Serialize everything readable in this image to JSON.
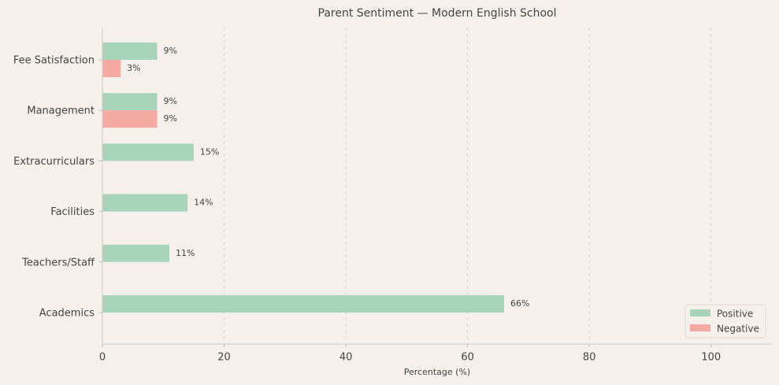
{
  "chart_data": {
    "type": "barh",
    "title": "Parent Sentiment — Modern English School",
    "xlabel": "Percentage (%)",
    "categories": [
      "Fee Satisfaction",
      "Management",
      "Extracurriculars",
      "Facilities",
      "Teachers/Staff",
      "Academics"
    ],
    "series": [
      {
        "name": "Positive",
        "color": "#a8d5ba",
        "values": [
          9,
          9,
          15,
          14,
          11,
          66
        ],
        "value_labels": [
          "9%",
          "9%",
          "15%",
          "14%",
          "11%",
          "66%"
        ]
      },
      {
        "name": "Negative",
        "color": "#f4a9a3",
        "values": [
          3,
          9,
          null,
          null,
          null,
          null
        ],
        "value_labels": [
          "3%",
          "9%",
          null,
          null,
          null,
          null
        ]
      }
    ],
    "xlim": [
      0,
      110
    ],
    "xticks": [
      0,
      20,
      40,
      60,
      80,
      100
    ],
    "grid": true,
    "legend": "lower right"
  }
}
